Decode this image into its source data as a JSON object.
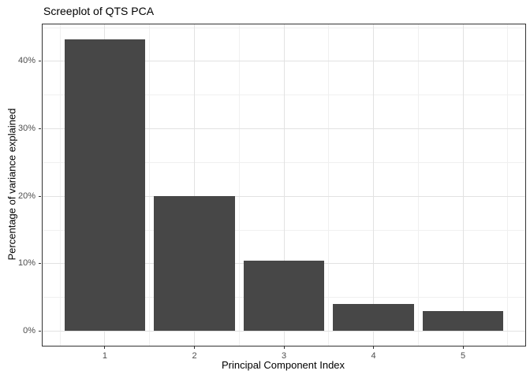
{
  "title": "Screeplot of QTS PCA",
  "chart_data": {
    "type": "bar",
    "title": "Screeplot of QTS PCA",
    "xlabel": "Principal Component Index",
    "ylabel": "Percentage of variance explained",
    "categories": [
      "1",
      "2",
      "3",
      "4",
      "5"
    ],
    "values": [
      43.3,
      20.0,
      10.4,
      4.0,
      3.0
    ],
    "x_tick_labels": [
      "1",
      "2",
      "3",
      "4",
      "5"
    ],
    "x_tick_values": [
      1,
      2,
      3,
      4,
      5
    ],
    "x_minor_values": [
      0.5,
      1.5,
      2.5,
      3.5,
      4.5,
      5.5
    ],
    "y_tick_labels": [
      "0%",
      "10%",
      "20%",
      "30%",
      "40%"
    ],
    "y_tick_values": [
      0,
      10,
      20,
      30,
      40
    ],
    "y_minor_values": [
      5,
      15,
      25,
      35,
      45
    ],
    "xlim": [
      0.305,
      5.695
    ],
    "ylim": [
      -2.17,
      45.47
    ],
    "bar_width": 0.9,
    "grid": "major and minor gridlines on, white panel",
    "legend": "none",
    "colors": {
      "bar_fill": "#474747",
      "panel_border": "#333333",
      "grid_major": "#e2e2e2",
      "grid_minor": "#f0f0f0",
      "tick_mark": "#333333",
      "tick_label": "#4d4d4d",
      "axis_title": "#000000",
      "plot_title": "#000000",
      "background": "#ffffff"
    }
  }
}
